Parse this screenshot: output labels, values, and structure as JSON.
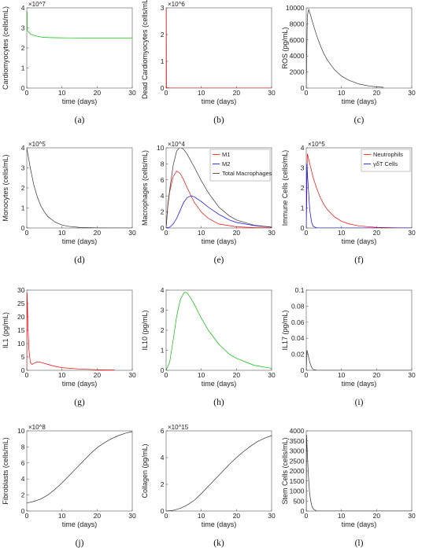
{
  "chart_data": [
    {
      "type": "line",
      "caption": "(a)",
      "ylabel": "Cardiomyocytes (cells/mL)",
      "xlabel": "time (days)",
      "xlim": [
        0,
        30
      ],
      "ylim": [
        0,
        40000000
      ],
      "y_exponent": "×10^7",
      "xticks": [
        "0",
        "10",
        "20",
        "30"
      ],
      "yticks": [
        "0",
        "1",
        "2",
        "3",
        "4"
      ],
      "legend": [],
      "series": [
        {
          "color": "#00c000",
          "x": [
            0,
            0.1,
            0.1,
            0.5,
            1,
            2,
            3,
            4,
            5,
            6,
            8,
            10,
            12,
            15,
            20,
            25,
            30
          ],
          "y": [
            38000000,
            38000000,
            29000000,
            28000000,
            27000000,
            26300000,
            25800000,
            25500000,
            25300000,
            25200000,
            25100000,
            25050000,
            25020000,
            25000000,
            25000000,
            25000000,
            25000000
          ]
        }
      ]
    },
    {
      "type": "line",
      "caption": "(b)",
      "ylabel": "Dead Cardiomyocytes (cells/mL)",
      "xlabel": "time (days)",
      "xlim": [
        0,
        30
      ],
      "ylim": [
        0,
        3200000
      ],
      "y_exponent": "×10^6",
      "xticks": [
        "0",
        "10",
        "20",
        "30"
      ],
      "yticks": [
        "0",
        "1",
        "2",
        "3"
      ],
      "legend": [],
      "series": [
        {
          "color": "#ff0000",
          "x": [
            0,
            0.05,
            0.1,
            1,
            30
          ],
          "y": [
            0,
            3200000,
            20000,
            0,
            0
          ]
        }
      ]
    },
    {
      "type": "line",
      "caption": "(c)",
      "ylabel": "ROS (pg/mL)",
      "xlabel": "time (days)",
      "xlim": [
        0,
        30
      ],
      "ylim": [
        0,
        10000
      ],
      "y_exponent": "",
      "xticks": [
        "0",
        "10",
        "20",
        "30"
      ],
      "yticks": [
        "0",
        "2000",
        "4000",
        "6000",
        "8000",
        "10000"
      ],
      "legend": [],
      "series": [
        {
          "color": "#333333",
          "x": [
            0,
            0.3,
            0.7,
            1,
            2,
            3,
            4,
            5,
            6,
            8,
            10,
            12,
            15,
            18,
            20,
            22
          ],
          "y": [
            0,
            9000,
            9800,
            9400,
            7900,
            6500,
            5300,
            4300,
            3500,
            2300,
            1500,
            1000,
            500,
            250,
            150,
            100
          ]
        }
      ]
    },
    {
      "type": "line",
      "caption": "(d)",
      "ylabel": "Monocytes (cells/mL)",
      "xlabel": "time (days)",
      "xlim": [
        0,
        30
      ],
      "ylim": [
        0,
        400000
      ],
      "y_exponent": "×10^5",
      "xticks": [
        "0",
        "10",
        "20",
        "30"
      ],
      "yticks": [
        "0",
        "1",
        "2",
        "3",
        "4"
      ],
      "legend": [],
      "series": [
        {
          "color": "#333333",
          "x": [
            0,
            1,
            2,
            3,
            4,
            5,
            6,
            8,
            10,
            12,
            15,
            20,
            25,
            30
          ],
          "y": [
            400000,
            300000,
            215000,
            155000,
            110000,
            80000,
            57000,
            30000,
            15000,
            8000,
            3000,
            500,
            0,
            0
          ]
        }
      ]
    },
    {
      "type": "line",
      "caption": "(e)",
      "ylabel": "Macrophages (cells/mL)",
      "xlabel": "time (days)",
      "xlim": [
        0,
        30
      ],
      "ylim": [
        0,
        100000
      ],
      "y_exponent": "×10^4",
      "xticks": [
        "0",
        "10",
        "20",
        "30"
      ],
      "yticks": [
        "0",
        "2",
        "4",
        "6",
        "8",
        "10"
      ],
      "legend": [
        "M1",
        "M2",
        "Total Macrophages"
      ],
      "series": [
        {
          "name": "M1",
          "color": "#ff0000",
          "x": [
            0,
            0.5,
            1,
            2,
            3,
            4,
            5,
            6,
            8,
            10,
            12,
            15,
            20,
            25,
            30
          ],
          "y": [
            0,
            28000,
            45000,
            64000,
            71000,
            68000,
            60000,
            50000,
            32000,
            20000,
            12000,
            5000,
            1500,
            500,
            100
          ]
        },
        {
          "name": "M2",
          "color": "#0000ff",
          "x": [
            0,
            1,
            2,
            3,
            4,
            5,
            6,
            7,
            8,
            10,
            12,
            15,
            18,
            20,
            25,
            30
          ],
          "y": [
            0,
            1000,
            5000,
            12000,
            22000,
            32000,
            38000,
            40000,
            39000,
            33000,
            26000,
            17000,
            10000,
            7000,
            3000,
            1000
          ]
        },
        {
          "name": "Total Macrophages",
          "color": "#333333",
          "x": [
            0,
            0.5,
            1,
            2,
            3,
            4,
            5,
            6,
            8,
            10,
            12,
            15,
            18,
            20,
            25,
            30
          ],
          "y": [
            0,
            30000,
            47000,
            78000,
            96000,
            101000,
            98000,
            92000,
            76000,
            59000,
            44000,
            26000,
            15000,
            10000,
            3500,
            1100
          ]
        }
      ]
    },
    {
      "type": "line",
      "caption": "(f)",
      "ylabel": "Immune Cells (cells/mL)",
      "xlabel": "time (days)",
      "xlim": [
        0,
        30
      ],
      "ylim": [
        0,
        400000
      ],
      "y_exponent": "×10^5",
      "xticks": [
        "0",
        "10",
        "20",
        "30"
      ],
      "yticks": [
        "0",
        "1",
        "2",
        "3",
        "4"
      ],
      "legend": [
        "Neutrophils",
        "γδT Cells"
      ],
      "series": [
        {
          "name": "Neutrophils",
          "color": "#ff0000",
          "x": [
            0,
            0.3,
            0.6,
            1,
            2,
            3,
            4,
            5,
            6,
            8,
            10,
            12,
            15,
            20,
            25,
            30
          ],
          "y": [
            0,
            370000,
            350000,
            320000,
            250000,
            195000,
            152000,
            118000,
            92000,
            56000,
            34000,
            21000,
            10000,
            3000,
            1000,
            0
          ]
        },
        {
          "name": "γδT Cells",
          "color": "#0000ff",
          "x": [
            0,
            0.2,
            0.4,
            1,
            1.5,
            2,
            3,
            30
          ],
          "y": [
            0,
            320000,
            250000,
            90000,
            30000,
            8000,
            0,
            0
          ]
        }
      ]
    },
    {
      "type": "line",
      "caption": "(g)",
      "ylabel": "IL1 (pg/mL)",
      "xlabel": "time (days)",
      "xlim": [
        0,
        30
      ],
      "ylim": [
        0,
        30
      ],
      "y_exponent": "",
      "xticks": [
        "0",
        "10",
        "20",
        "30"
      ],
      "yticks": [
        "0",
        "5",
        "10",
        "15",
        "20",
        "25",
        "30"
      ],
      "legend": [],
      "series": [
        {
          "color": "#ff0000",
          "x": [
            0,
            0.1,
            0.3,
            0.6,
            1,
            1.5,
            2,
            3,
            4,
            6,
            8,
            10,
            15,
            20,
            25
          ],
          "y": [
            0,
            29,
            18,
            8,
            3,
            2.2,
            2.6,
            3.2,
            3,
            2.2,
            1.5,
            1,
            0.5,
            0.2,
            0.1
          ]
        }
      ]
    },
    {
      "type": "line",
      "caption": "(h)",
      "ylabel": "IL10 (pg/mL)",
      "xlabel": "time (days)",
      "xlim": [
        0,
        30
      ],
      "ylim": [
        0,
        4
      ],
      "y_exponent": "",
      "xticks": [
        "0",
        "10",
        "20",
        "30"
      ],
      "yticks": [
        "0",
        "1",
        "2",
        "3",
        "4"
      ],
      "legend": [],
      "series": [
        {
          "color": "#00c000",
          "x": [
            0,
            1,
            2,
            3,
            4,
            5,
            5.5,
            6,
            7,
            8,
            10,
            12,
            15,
            18,
            20,
            25,
            30
          ],
          "y": [
            0,
            0.4,
            1.5,
            2.7,
            3.5,
            3.85,
            3.9,
            3.85,
            3.6,
            3.3,
            2.6,
            2,
            1.3,
            0.8,
            0.6,
            0.25,
            0.1
          ]
        }
      ]
    },
    {
      "type": "line",
      "caption": "(i)",
      "ylabel": "IL17 (pg/mL)",
      "xlabel": "time (days)",
      "xlim": [
        0,
        30
      ],
      "ylim": [
        0,
        0.1
      ],
      "y_exponent": "",
      "xticks": [
        "0",
        "10",
        "20",
        "30"
      ],
      "yticks": [
        "0",
        "0.02",
        "0.04",
        "0.06",
        "0.08",
        "0.1"
      ],
      "legend": [],
      "series": [
        {
          "color": "#333333",
          "x": [
            0,
            0.2,
            0.5,
            1,
            1.5,
            2,
            3,
            30
          ],
          "y": [
            0,
            0.025,
            0.02,
            0.01,
            0.004,
            0.001,
            0,
            0
          ]
        }
      ]
    },
    {
      "type": "line",
      "caption": "(j)",
      "ylabel": "Fibroblasts (cells/mL)",
      "xlabel": "time (days)",
      "xlim": [
        0,
        30
      ],
      "ylim": [
        0,
        1000000000
      ],
      "y_exponent": "×10^8",
      "xticks": [
        "0",
        "10",
        "20",
        "30"
      ],
      "yticks": [
        "0",
        "2",
        "4",
        "6",
        "8",
        "10"
      ],
      "legend": [],
      "series": [
        {
          "color": "#333333",
          "x": [
            0,
            2,
            4,
            6,
            8,
            10,
            12,
            14,
            16,
            18,
            20,
            22,
            24,
            26,
            28,
            30
          ],
          "y": [
            100000000,
            120000000,
            150000000,
            200000000,
            270000000,
            350000000,
            440000000,
            530000000,
            620000000,
            710000000,
            790000000,
            850000000,
            900000000,
            940000000,
            970000000,
            990000000
          ]
        }
      ]
    },
    {
      "type": "line",
      "caption": "(k)",
      "ylabel": "Collagen (pg/mL)",
      "xlabel": "time (days)",
      "xlim": [
        0,
        30
      ],
      "ylim": [
        0,
        6000000000000000
      ],
      "y_exponent": "×10^15",
      "xticks": [
        "0",
        "10",
        "20",
        "30"
      ],
      "yticks": [
        "0",
        "2",
        "4",
        "6"
      ],
      "legend": [],
      "series": [
        {
          "color": "#333333",
          "x": [
            0,
            2,
            4,
            6,
            8,
            10,
            12,
            14,
            16,
            18,
            20,
            22,
            24,
            26,
            28,
            30
          ],
          "y": [
            0,
            50000000000000,
            200000000000000,
            450000000000000,
            800000000000000,
            1300000000000000,
            1850000000000000,
            2400000000000000,
            2950000000000000,
            3500000000000000,
            4000000000000000,
            4450000000000000,
            4850000000000000,
            5200000000000000,
            5450000000000000,
            5650000000000000
          ]
        }
      ]
    },
    {
      "type": "line",
      "caption": "(l)",
      "ylabel": "Stem Cells (cells/mL)",
      "xlabel": "time (days)",
      "xlim": [
        0,
        30
      ],
      "ylim": [
        0,
        4000
      ],
      "y_exponent": "",
      "xticks": [
        "0",
        "10",
        "20",
        "30"
      ],
      "yticks": [
        "0",
        "500",
        "1000",
        "1500",
        "2000",
        "2500",
        "3000",
        "3500",
        "4000"
      ],
      "legend": [],
      "series": [
        {
          "color": "#333333",
          "x": [
            0,
            0.1,
            0.3,
            0.6,
            1,
            1.5,
            2,
            3,
            30
          ],
          "y": [
            0,
            3800,
            2900,
            1800,
            800,
            300,
            100,
            0,
            0
          ]
        }
      ]
    }
  ]
}
